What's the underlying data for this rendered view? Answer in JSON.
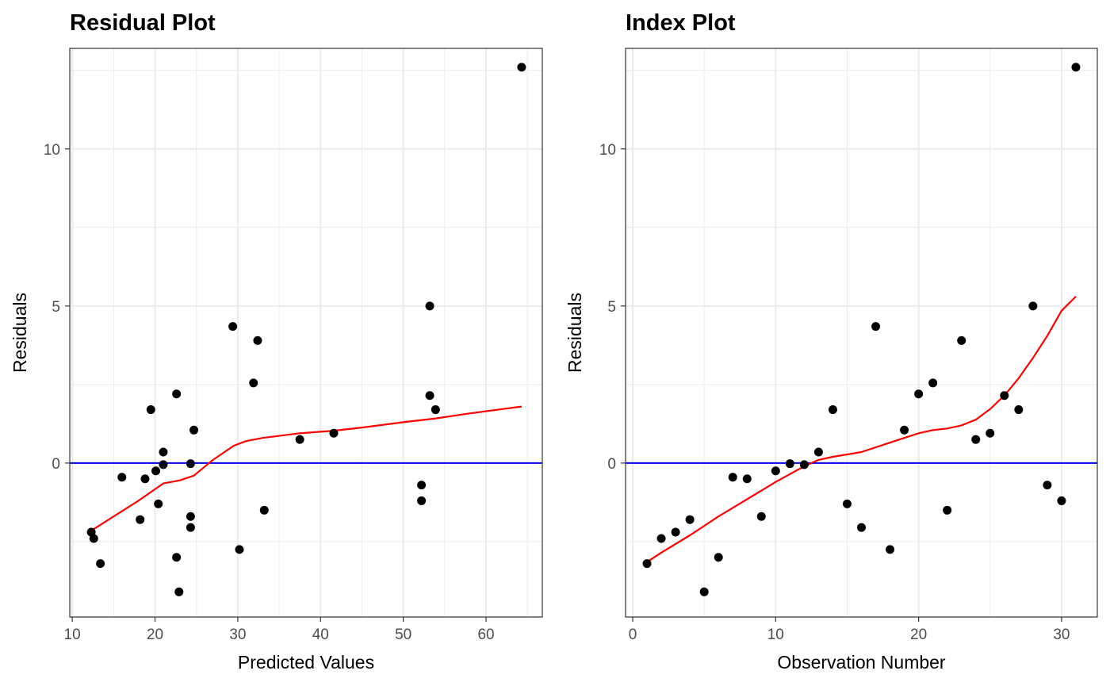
{
  "colors": {
    "panel_border": "#333333",
    "grid": "#ebebeb",
    "points": "#000000",
    "smooth_line": "#ff0000",
    "zero_line": "#0000ff",
    "tick_text": "#4d4d4d"
  },
  "chart_data": [
    {
      "type": "scatter",
      "title": "Residual Plot",
      "xlabel": "Predicted Values",
      "ylabel": "Residuals",
      "xlim": [
        9.7,
        66.8
      ],
      "ylim": [
        -4.9,
        13.2
      ],
      "x_ticks": [
        10,
        20,
        30,
        40,
        50,
        60
      ],
      "y_ticks": [
        0,
        5,
        10
      ],
      "grid": true,
      "reference_line_y": 0,
      "points": [
        {
          "x": 12.3,
          "y": -2.2
        },
        {
          "x": 12.6,
          "y": -2.4
        },
        {
          "x": 13.4,
          "y": -3.2
        },
        {
          "x": 16.0,
          "y": -0.45
        },
        {
          "x": 18.2,
          "y": -1.8
        },
        {
          "x": 18.8,
          "y": -0.5
        },
        {
          "x": 19.5,
          "y": 1.7
        },
        {
          "x": 20.1,
          "y": -0.25
        },
        {
          "x": 20.4,
          "y": -1.3
        },
        {
          "x": 21.0,
          "y": 0.35
        },
        {
          "x": 21.0,
          "y": -0.05
        },
        {
          "x": 22.6,
          "y": 2.2
        },
        {
          "x": 22.6,
          "y": -3.0
        },
        {
          "x": 22.9,
          "y": -4.1
        },
        {
          "x": 24.3,
          "y": -0.02
        },
        {
          "x": 24.3,
          "y": -1.7
        },
        {
          "x": 24.3,
          "y": -2.05
        },
        {
          "x": 24.7,
          "y": 1.05
        },
        {
          "x": 29.4,
          "y": 4.35
        },
        {
          "x": 30.2,
          "y": -2.75
        },
        {
          "x": 31.9,
          "y": 2.55
        },
        {
          "x": 32.4,
          "y": 3.9
        },
        {
          "x": 33.2,
          "y": -1.5
        },
        {
          "x": 37.5,
          "y": 0.75
        },
        {
          "x": 41.6,
          "y": 0.95
        },
        {
          "x": 52.2,
          "y": -0.7
        },
        {
          "x": 52.2,
          "y": -1.2
        },
        {
          "x": 53.2,
          "y": 5.0
        },
        {
          "x": 53.2,
          "y": 2.15
        },
        {
          "x": 53.9,
          "y": 1.7
        },
        {
          "x": 64.3,
          "y": 12.6
        }
      ],
      "smooth_line": [
        {
          "x": 12.3,
          "y": -2.15
        },
        {
          "x": 15.0,
          "y": -1.7
        },
        {
          "x": 18.0,
          "y": -1.2
        },
        {
          "x": 21.0,
          "y": -0.65
        },
        {
          "x": 23.0,
          "y": -0.55
        },
        {
          "x": 24.7,
          "y": -0.4
        },
        {
          "x": 27.0,
          "y": 0.1
        },
        {
          "x": 29.5,
          "y": 0.55
        },
        {
          "x": 31.0,
          "y": 0.7
        },
        {
          "x": 33.0,
          "y": 0.8
        },
        {
          "x": 37.5,
          "y": 0.95
        },
        {
          "x": 41.6,
          "y": 1.03
        },
        {
          "x": 45.0,
          "y": 1.13
        },
        {
          "x": 50.0,
          "y": 1.3
        },
        {
          "x": 53.9,
          "y": 1.42
        },
        {
          "x": 58.0,
          "y": 1.58
        },
        {
          "x": 64.3,
          "y": 1.8
        }
      ]
    },
    {
      "type": "scatter",
      "title": "Index Plot",
      "xlabel": "Observation Number",
      "ylabel": "Residuals",
      "xlim": [
        -0.5,
        32.5
      ],
      "ylim": [
        -4.9,
        13.2
      ],
      "x_ticks": [
        0,
        10,
        20,
        30
      ],
      "y_ticks": [
        0,
        5,
        10
      ],
      "grid": true,
      "reference_line_y": 0,
      "points": [
        {
          "x": 1,
          "y": -3.2
        },
        {
          "x": 2,
          "y": -2.4
        },
        {
          "x": 3,
          "y": -2.2
        },
        {
          "x": 4,
          "y": -1.8
        },
        {
          "x": 5,
          "y": -4.1
        },
        {
          "x": 6,
          "y": -3.0
        },
        {
          "x": 7,
          "y": -0.45
        },
        {
          "x": 8,
          "y": -0.5
        },
        {
          "x": 9,
          "y": -1.7
        },
        {
          "x": 10,
          "y": -0.25
        },
        {
          "x": 11,
          "y": -0.02
        },
        {
          "x": 12,
          "y": -0.05
        },
        {
          "x": 13,
          "y": 0.35
        },
        {
          "x": 14,
          "y": 1.7
        },
        {
          "x": 15,
          "y": -1.3
        },
        {
          "x": 16,
          "y": -2.05
        },
        {
          "x": 17,
          "y": 4.35
        },
        {
          "x": 18,
          "y": -2.75
        },
        {
          "x": 19,
          "y": 1.05
        },
        {
          "x": 20,
          "y": 2.2
        },
        {
          "x": 21,
          "y": 2.55
        },
        {
          "x": 22,
          "y": -1.5
        },
        {
          "x": 23,
          "y": 3.9
        },
        {
          "x": 24,
          "y": 0.75
        },
        {
          "x": 25,
          "y": 0.95
        },
        {
          "x": 26,
          "y": 2.15
        },
        {
          "x": 27,
          "y": 1.7
        },
        {
          "x": 28,
          "y": 5.0
        },
        {
          "x": 29,
          "y": -0.7
        },
        {
          "x": 30,
          "y": -1.2
        },
        {
          "x": 31,
          "y": 12.6
        }
      ],
      "smooth_line": [
        {
          "x": 1,
          "y": -3.15
        },
        {
          "x": 2,
          "y": -2.85
        },
        {
          "x": 4,
          "y": -2.3
        },
        {
          "x": 6,
          "y": -1.7
        },
        {
          "x": 8,
          "y": -1.15
        },
        {
          "x": 10,
          "y": -0.6
        },
        {
          "x": 11,
          "y": -0.35
        },
        {
          "x": 12,
          "y": -0.1
        },
        {
          "x": 13,
          "y": 0.1
        },
        {
          "x": 14,
          "y": 0.2
        },
        {
          "x": 16,
          "y": 0.35
        },
        {
          "x": 18,
          "y": 0.65
        },
        {
          "x": 20,
          "y": 0.95
        },
        {
          "x": 21,
          "y": 1.05
        },
        {
          "x": 22,
          "y": 1.1
        },
        {
          "x": 23,
          "y": 1.2
        },
        {
          "x": 24,
          "y": 1.38
        },
        {
          "x": 25,
          "y": 1.72
        },
        {
          "x": 26,
          "y": 2.15
        },
        {
          "x": 27,
          "y": 2.7
        },
        {
          "x": 28,
          "y": 3.35
        },
        {
          "x": 29,
          "y": 4.05
        },
        {
          "x": 30,
          "y": 4.85
        },
        {
          "x": 31,
          "y": 5.3
        }
      ]
    }
  ]
}
